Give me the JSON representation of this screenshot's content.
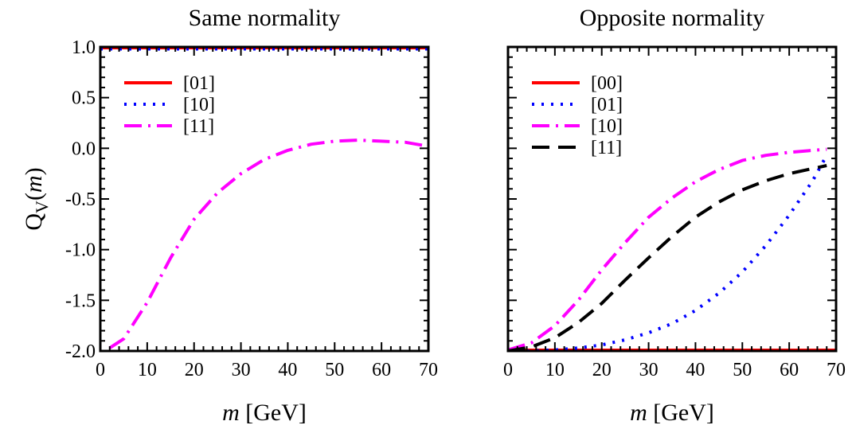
{
  "y_axis_label": {
    "main": "Q",
    "sub": "V",
    "open": "(",
    "var": "m",
    "close": ")"
  },
  "chart_data": [
    {
      "type": "line",
      "title": "Same normality",
      "xlabel": {
        "var": "m",
        "rest": " [GeV]"
      },
      "xlim": [
        0,
        70
      ],
      "ylim": [
        -2.0,
        1.0
      ],
      "xticks": [
        "0",
        "10",
        "20",
        "30",
        "40",
        "50",
        "60",
        "70"
      ],
      "yticks": [
        "1.0",
        "0.5",
        "0.0",
        "-0.5",
        "-1.0",
        "-1.5",
        "-2.0"
      ],
      "grid": false,
      "legend_position": "top-left",
      "series": [
        {
          "name": "[01]",
          "color": "#ff0000",
          "style": "solid",
          "x": [
            0,
            70
          ],
          "y": [
            1.0,
            1.0
          ]
        },
        {
          "name": "[10]",
          "color": "#0000ff",
          "style": "dotted",
          "x": [
            0,
            70
          ],
          "y": [
            0.98,
            0.98
          ]
        },
        {
          "name": "[11]",
          "color": "#ff00ff",
          "style": "dashdot",
          "x": [
            2,
            5,
            10,
            15,
            20,
            25,
            30,
            35,
            40,
            45,
            50,
            55,
            60,
            65,
            70
          ],
          "y": [
            -1.97,
            -1.88,
            -1.52,
            -1.08,
            -0.7,
            -0.44,
            -0.25,
            -0.11,
            -0.02,
            0.04,
            0.07,
            0.08,
            0.07,
            0.06,
            0.02
          ]
        }
      ]
    },
    {
      "type": "line",
      "title": "Opposite normality",
      "xlabel": {
        "var": "m",
        "rest": " [GeV]"
      },
      "xlim": [
        0,
        70
      ],
      "ylim": [
        -2.0,
        1.0
      ],
      "xticks": [
        "0",
        "10",
        "20",
        "30",
        "40",
        "50",
        "60",
        "70"
      ],
      "yticks": [],
      "grid": false,
      "legend_position": "top-left",
      "series": [
        {
          "name": "[00]",
          "color": "#ff0000",
          "style": "solid",
          "x": [
            0,
            70
          ],
          "y": [
            -2.0,
            -2.0
          ]
        },
        {
          "name": "[01]",
          "color": "#0000ff",
          "style": "dotted",
          "x": [
            0,
            5,
            10,
            15,
            20,
            25,
            30,
            35,
            40,
            45,
            50,
            55,
            60,
            65,
            68
          ],
          "y": [
            -2.0,
            -2.0,
            -1.99,
            -1.97,
            -1.94,
            -1.89,
            -1.82,
            -1.73,
            -1.6,
            -1.43,
            -1.22,
            -0.96,
            -0.66,
            -0.32,
            -0.07
          ]
        },
        {
          "name": "[10]",
          "color": "#ff00ff",
          "style": "dashdot",
          "x": [
            0,
            5,
            10,
            15,
            20,
            25,
            30,
            35,
            40,
            45,
            50,
            55,
            60,
            65,
            68
          ],
          "y": [
            -1.99,
            -1.92,
            -1.75,
            -1.5,
            -1.2,
            -0.93,
            -0.68,
            -0.49,
            -0.33,
            -0.21,
            -0.12,
            -0.07,
            -0.04,
            -0.02,
            -0.01
          ]
        },
        {
          "name": "[11]",
          "color": "#000000",
          "style": "dashed",
          "x": [
            0,
            5,
            10,
            15,
            20,
            25,
            30,
            35,
            40,
            45,
            50,
            55,
            60,
            65,
            68
          ],
          "y": [
            -2.0,
            -1.96,
            -1.87,
            -1.72,
            -1.53,
            -1.3,
            -1.08,
            -0.87,
            -0.68,
            -0.53,
            -0.41,
            -0.32,
            -0.25,
            -0.2,
            -0.17
          ]
        }
      ]
    }
  ]
}
